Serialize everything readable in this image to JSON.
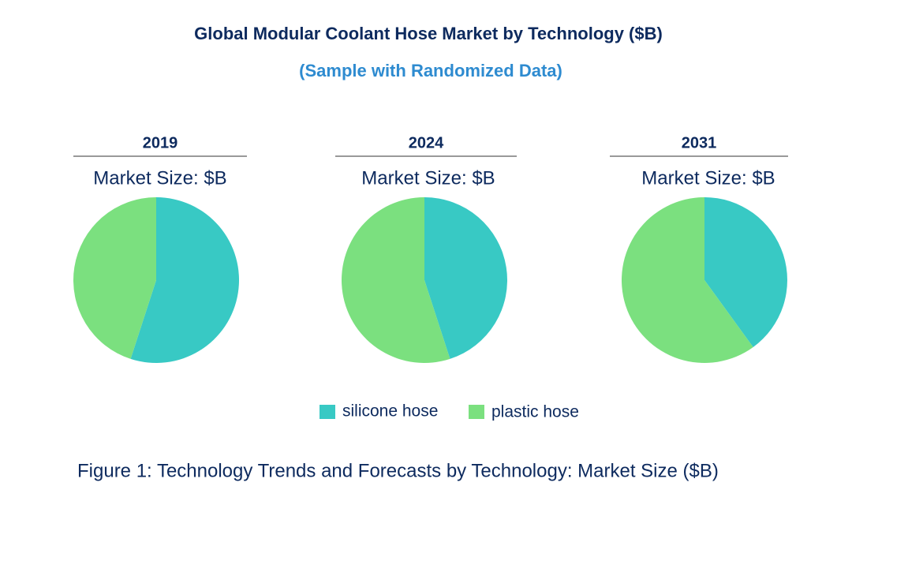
{
  "header": {
    "title": "Global Modular Coolant Hose Market by Technology ($B)",
    "subtitle": "(Sample with Randomized Data)"
  },
  "chart_data": [
    {
      "type": "pie",
      "title": "2019",
      "subtitle": "Market Size: $B",
      "categories": [
        "silicone hose",
        "plastic hose"
      ],
      "values": [
        55,
        45
      ],
      "colors": [
        "#38c9c4",
        "#7be07f"
      ]
    },
    {
      "type": "pie",
      "title": "2024",
      "subtitle": "Market Size: $B",
      "categories": [
        "silicone hose",
        "plastic hose"
      ],
      "values": [
        45,
        55
      ],
      "colors": [
        "#38c9c4",
        "#7be07f"
      ]
    },
    {
      "type": "pie",
      "title": "2031",
      "subtitle": "Market Size: $B",
      "categories": [
        "silicone hose",
        "plastic hose"
      ],
      "values": [
        40,
        60
      ],
      "colors": [
        "#38c9c4",
        "#7be07f"
      ]
    }
  ],
  "caption": "Figure 1: Technology Trends and Forecasts by Technology: Market Size ($B)"
}
